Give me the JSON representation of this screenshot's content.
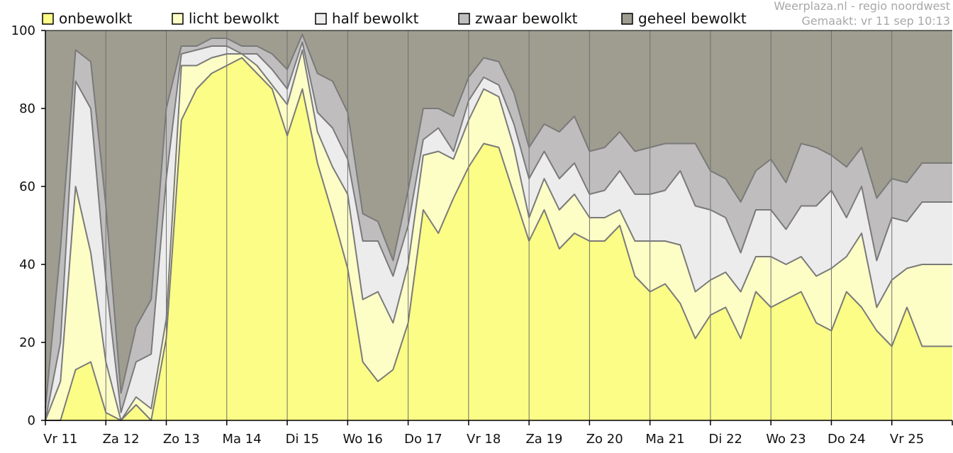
{
  "header": {
    "source": "Weerplaza.nl - regio noordwest",
    "made": "Gemaakt: vr 11 sep 10:13"
  },
  "colors": {
    "background": "#ffffff",
    "outline": "#7a7a7a",
    "axis": "#000000",
    "header_text": "#a8a8a8",
    "axis_text": "#111111"
  },
  "chart_data": {
    "type": "area",
    "stacked": true,
    "title": "",
    "xlabel": "",
    "ylabel": "",
    "ylim": [
      0,
      100
    ],
    "yticks": [
      0,
      20,
      40,
      60,
      80,
      100
    ],
    "grid": "vertical lines at day boundaries",
    "legend_position": "top",
    "day_labels": [
      "Vr 11",
      "Za 12",
      "Zo 13",
      "Ma 14",
      "Di 15",
      "Wo 16",
      "Do 17",
      "Vr 18",
      "Za 19",
      "Zo 20",
      "Ma 21",
      "Di 22",
      "Wo 23",
      "Do 24",
      "Vr 25"
    ],
    "points_per_day": 4,
    "x": [
      0,
      0.25,
      0.5,
      0.75,
      1,
      1.25,
      1.5,
      1.75,
      2,
      2.25,
      2.5,
      2.75,
      3,
      3.25,
      3.5,
      3.75,
      4,
      4.25,
      4.5,
      4.75,
      5,
      5.25,
      5.5,
      5.75,
      6,
      6.25,
      6.5,
      6.75,
      7,
      7.25,
      7.5,
      7.75,
      8,
      8.25,
      8.5,
      8.75,
      9,
      9.25,
      9.5,
      9.75,
      10,
      10.25,
      10.5,
      10.75,
      11,
      11.25,
      11.5,
      11.75,
      12,
      12.25,
      12.5,
      12.75,
      13,
      13.25,
      13.5,
      13.75,
      14,
      14.25,
      14.5,
      14.75
    ],
    "series": [
      {
        "name": "onbewolkt",
        "color": "#fbfd86",
        "values": [
          0,
          0,
          13,
          15,
          2,
          0,
          4,
          0,
          21,
          77,
          85,
          89,
          91,
          93,
          89,
          85,
          73,
          85,
          66,
          53,
          39,
          15,
          10,
          13,
          25,
          54,
          48,
          57,
          65,
          71,
          70,
          58,
          46,
          54,
          44,
          48,
          46,
          46,
          50,
          37,
          33,
          35,
          30,
          21,
          27,
          29,
          21,
          33,
          29,
          31,
          33,
          25,
          23,
          33,
          29,
          23,
          19,
          29,
          19,
          19
        ]
      },
      {
        "name": "licht bewolkt",
        "color": "#fdfdc6",
        "values": [
          0,
          10,
          47,
          28,
          13,
          0,
          2,
          3,
          5,
          14,
          6,
          4,
          3,
          1,
          2,
          1,
          8,
          10,
          8,
          12,
          19,
          16,
          23,
          12,
          15,
          14,
          21,
          10,
          12,
          14,
          13,
          12,
          6,
          8,
          10,
          10,
          6,
          6,
          4,
          9,
          13,
          11,
          15,
          12,
          9,
          9,
          12,
          9,
          13,
          9,
          9,
          12,
          16,
          9,
          19,
          6,
          17,
          10,
          21,
          21
        ]
      },
      {
        "name": "half bewolkt",
        "color": "#ececec",
        "values": [
          0,
          10,
          27,
          37,
          21,
          2,
          9,
          14,
          36,
          3,
          4,
          3,
          2,
          0,
          3,
          4,
          4,
          2,
          5,
          10,
          9,
          15,
          13,
          12,
          10,
          4,
          6,
          2,
          5,
          3,
          3,
          6,
          10,
          7,
          8,
          8,
          6,
          7,
          10,
          12,
          12,
          13,
          19,
          22,
          18,
          14,
          10,
          12,
          12,
          9,
          13,
          18,
          20,
          10,
          12,
          12,
          16,
          12,
          16,
          16
        ]
      },
      {
        "name": "zwaar bewolkt",
        "color": "#bfbdbd",
        "values": [
          3,
          24,
          8,
          12,
          19,
          5,
          9,
          14,
          18,
          2,
          1,
          2,
          2,
          2,
          2,
          4,
          5,
          2,
          10,
          12,
          12,
          7,
          5,
          4,
          9,
          8,
          5,
          9,
          6,
          5,
          6,
          8,
          8,
          7,
          12,
          12,
          11,
          11,
          10,
          11,
          12,
          12,
          7,
          16,
          10,
          10,
          13,
          10,
          13,
          12,
          16,
          15,
          9,
          13,
          10,
          16,
          10,
          10,
          10,
          10
        ]
      },
      {
        "name": "geheel bewolkt",
        "color": "#9e9d90",
        "values": [
          97,
          56,
          5,
          8,
          45,
          93,
          76,
          69,
          20,
          4,
          4,
          2,
          2,
          4,
          4,
          6,
          10,
          1,
          11,
          13,
          21,
          47,
          49,
          59,
          41,
          20,
          20,
          22,
          12,
          7,
          8,
          16,
          30,
          24,
          26,
          22,
          31,
          30,
          26,
          31,
          30,
          29,
          29,
          29,
          36,
          38,
          44,
          36,
          33,
          39,
          29,
          30,
          32,
          35,
          30,
          43,
          38,
          39,
          34,
          34
        ]
      }
    ]
  }
}
